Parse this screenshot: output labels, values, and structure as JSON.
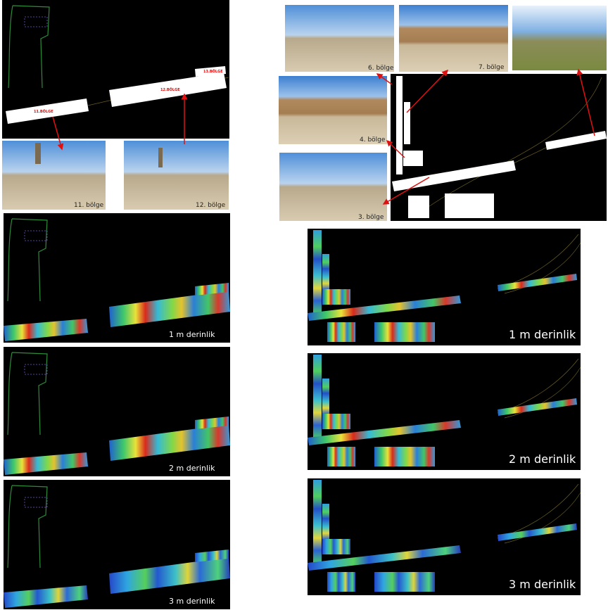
{
  "left": {
    "site_map": {
      "zone_labels": [
        "11.BÖLGE",
        "12.BÖLGE",
        "13.BÖLGE"
      ]
    },
    "photos": [
      "11. bölge",
      "12. bölge"
    ],
    "depth_maps": [
      "1 m derinlik",
      "2 m derinlik",
      "3 m derinlik"
    ]
  },
  "right": {
    "photos": [
      "6. bölge",
      "7. bölge",
      "4. bölge",
      "3. bölge"
    ],
    "depth_maps": [
      "1 m derinlik",
      "2 m derinlik",
      "3 m derinlik"
    ]
  }
}
